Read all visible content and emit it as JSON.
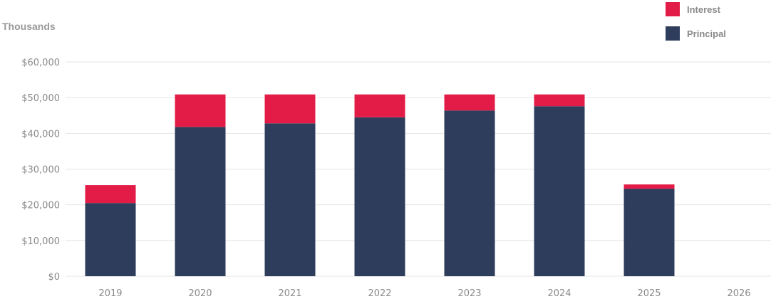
{
  "chart_data": {
    "type": "bar",
    "stacked": true,
    "unit_label": "Thousands",
    "categories": [
      "2019",
      "2020",
      "2021",
      "2022",
      "2023",
      "2024",
      "2025",
      "2026"
    ],
    "series": [
      {
        "name": "Principal",
        "color": "#2e3d5c",
        "values": [
          20500,
          41800,
          42800,
          44500,
          46400,
          47600,
          24500,
          0
        ]
      },
      {
        "name": "Interest",
        "color": "#e31c47",
        "values": [
          5000,
          9100,
          8100,
          6400,
          4500,
          3300,
          1200,
          0
        ]
      }
    ],
    "y_ticks": [
      "$0",
      "$10,000",
      "$20,000",
      "$30,000",
      "$40,000",
      "$50,000",
      "$60,000"
    ],
    "ylim": [
      0,
      60000
    ],
    "grid": true,
    "legend_position": "top-right"
  }
}
